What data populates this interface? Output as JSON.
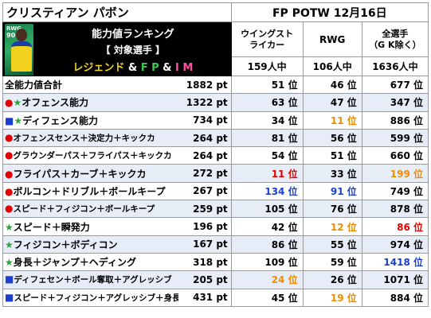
{
  "header": {
    "player_name": "クリスティアン パボン",
    "event": "FP POTW 12月16日"
  },
  "card": {
    "position": "RWG",
    "rating": "90"
  },
  "banner": {
    "line1": "能力値ランキング",
    "line2": "【 対象選手 】",
    "line3_legend": "レジェンド",
    "line3_amp1": " & ",
    "line3_fp": "F P",
    "line3_amp2": " & ",
    "line3_im": "I M"
  },
  "columns": [
    {
      "label_line1": "ウイングスト",
      "label_line2": "ライカー",
      "count": "159人中"
    },
    {
      "label_line1": "RWG",
      "label_line2": "",
      "count": "106人中"
    },
    {
      "label_line1": "全選手",
      "label_line2": "（G K除く）",
      "count": "1636人中"
    }
  ],
  "rows": [
    {
      "marker": "",
      "marker_color": "",
      "label": "全能力値合計",
      "total": "1882 pt",
      "r1": "51 位",
      "r2": "46 位",
      "r3": "677 位",
      "c1": "",
      "c2": "",
      "c3": ""
    },
    {
      "marker": "●★",
      "marker_color": "#e30000,#2aa53a",
      "label": "オフェンス能力",
      "total": "1322 pt",
      "r1": "63 位",
      "r2": "47 位",
      "r3": "347 位",
      "c1": "",
      "c2": "",
      "c3": ""
    },
    {
      "marker": "■★",
      "marker_color": "#1a3fd1,#2aa53a",
      "label": "ディフェンス能力",
      "total": "734 pt",
      "r1": "34 位",
      "r2": "11 位",
      "r3": "886 位",
      "c1": "",
      "c2": "orange",
      "c3": ""
    },
    {
      "marker": "●",
      "marker_color": "#e30000",
      "label": "オフェンスセンス＋決定力＋キックカ",
      "total": "264 pt",
      "r1": "81 位",
      "r2": "56 位",
      "r3": "599 位",
      "c1": "",
      "c2": "",
      "c3": ""
    },
    {
      "marker": "●",
      "marker_color": "#e30000",
      "label": "グラウンダーパス＋フライパス＋キックカ",
      "total": "264 pt",
      "r1": "54 位",
      "r2": "51 位",
      "r3": "660 位",
      "c1": "",
      "c2": "",
      "c3": ""
    },
    {
      "marker": "●",
      "marker_color": "#e30000",
      "label": "フライパス＋カーブ＋キックカ",
      "total": "272 pt",
      "r1": "11 位",
      "r2": "33 位",
      "r3": "199 位",
      "c1": "red",
      "c2": "",
      "c3": "orange"
    },
    {
      "marker": "●",
      "marker_color": "#e30000",
      "label": "ボルコン＋ドリブル＋ボールキープ",
      "total": "267 pt",
      "r1": "134 位",
      "r2": "91 位",
      "r3": "749 位",
      "c1": "blue",
      "c2": "blue",
      "c3": ""
    },
    {
      "marker": "●",
      "marker_color": "#e30000",
      "label": "スピード＋フィジコン＋ボールキープ",
      "total": "259 pt",
      "r1": "105 位",
      "r2": "76 位",
      "r3": "878 位",
      "c1": "",
      "c2": "",
      "c3": ""
    },
    {
      "marker": "★",
      "marker_color": "#2aa53a",
      "label": "スピード＋瞬発力",
      "total": "196 pt",
      "r1": "42 位",
      "r2": "12 位",
      "r3": "86 位",
      "c1": "",
      "c2": "orange",
      "c3": "red"
    },
    {
      "marker": "★",
      "marker_color": "#2aa53a",
      "label": "フィジコン＋ボディコン",
      "total": "167 pt",
      "r1": "86 位",
      "r2": "55 位",
      "r3": "974 位",
      "c1": "",
      "c2": "",
      "c3": ""
    },
    {
      "marker": "★",
      "marker_color": "#2aa53a",
      "label": "身長＋ジャンプ＋ヘディング",
      "total": "318 pt",
      "r1": "109 位",
      "r2": "59 位",
      "r3": "1418 位",
      "c1": "",
      "c2": "",
      "c3": "blue"
    },
    {
      "marker": "■",
      "marker_color": "#1a3fd1",
      "label": "ディフェセン＋ボール奪取＋アグレッシブ",
      "total": "205 pt",
      "r1": "24 位",
      "r2": "26 位",
      "r3": "1071 位",
      "c1": "orange",
      "c2": "",
      "c3": ""
    },
    {
      "marker": "■",
      "marker_color": "#1a3fd1",
      "label": "スピード＋フィジコン＋アグレッシブ＋身長",
      "total": "431 pt",
      "r1": "45 位",
      "r2": "19 位",
      "r3": "884 位",
      "c1": "",
      "c2": "orange",
      "c3": ""
    }
  ]
}
